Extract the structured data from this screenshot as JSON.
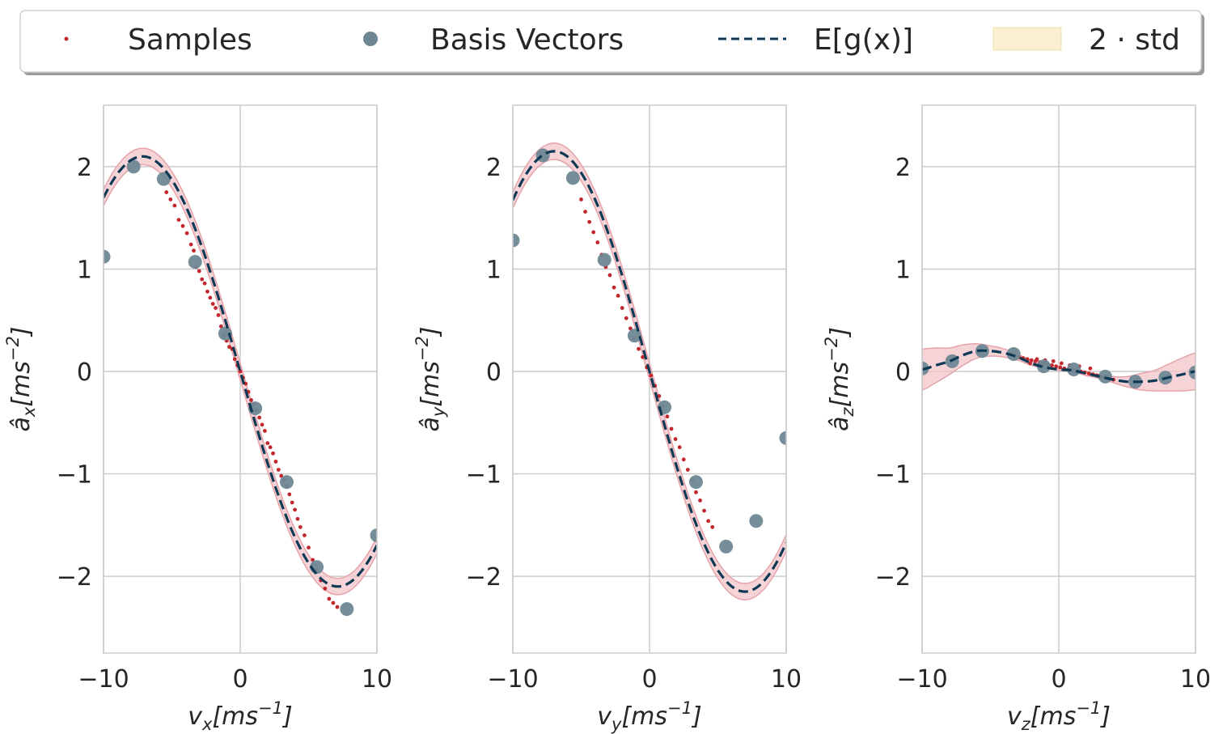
{
  "colors": {
    "samples": "#c1272d",
    "basis": "#6f8795",
    "mean": "#0d3954",
    "band_fill": "#f2c4c8",
    "band_edge": "#e6a3aa",
    "legend_band": "#faefd0",
    "grid": "#cccccc",
    "axes": "#cccccc",
    "text": "#262626"
  },
  "legend": {
    "items": [
      {
        "label": "Samples",
        "kind": "samples"
      },
      {
        "label": "Basis Vectors",
        "kind": "basis"
      },
      {
        "label": "E[g(x)]",
        "kind": "mean"
      },
      {
        "label": "2 · std",
        "kind": "band"
      }
    ],
    "placement": "top-center"
  },
  "chart_data": [
    {
      "type": "scatter",
      "xlabel": "v_x[ms^-1]",
      "ylabel": "â_x[ms^-2]",
      "xlabel_parts": {
        "base": "v",
        "sub": "x",
        "unit": "[ms",
        "sup": "−1",
        "close": "]"
      },
      "ylabel_parts": {
        "base": "â",
        "sub": "x",
        "unit": "[ms",
        "sup": "−2",
        "close": "]"
      },
      "xlim": [
        -10,
        10
      ],
      "ylim": [
        -2.75,
        2.6
      ],
      "xticks": [
        -10,
        0,
        10
      ],
      "xtick_labels": [
        "−10",
        "0",
        "10"
      ],
      "yticks": [
        -2,
        -1,
        0,
        1,
        2
      ],
      "ytick_labels": [
        "−2",
        "−1",
        "0",
        "1",
        "2"
      ],
      "grid": true,
      "mean_function": {
        "form": "A*sin(w*x)",
        "A": 2.1,
        "w": 0.22
      },
      "band_halfwidth": 0.08,
      "basis_vectors": {
        "x": [
          -10,
          -7.8,
          -5.6,
          -3.3,
          -1.1,
          1.1,
          3.4,
          5.6,
          7.8,
          10
        ],
        "y": [
          1.12,
          2.0,
          1.88,
          1.07,
          0.37,
          -0.36,
          -1.08,
          -1.91,
          -2.32,
          -1.6
        ]
      },
      "samples": {
        "x": [
          -5.4,
          -5.1,
          -4.8,
          -4.5,
          -4.2,
          -3.9,
          -3.6,
          -3.4,
          -3.2,
          -3.0,
          -2.8,
          -2.6,
          -2.4,
          -2.2,
          -2.0,
          -1.8,
          -1.6,
          -1.4,
          -1.2,
          -1.0,
          -0.8,
          -0.6,
          -0.4,
          -0.2,
          0.0,
          0.2,
          0.4,
          0.6,
          0.8,
          1.0,
          1.2,
          1.4,
          1.6,
          1.8,
          2.0,
          2.2,
          2.4,
          2.6,
          2.8,
          3.0,
          3.2,
          3.4,
          3.6,
          3.8,
          4.0,
          4.2,
          4.4,
          4.7,
          5.0,
          5.3,
          5.6,
          5.9,
          6.2,
          6.5,
          6.8,
          7.1
        ],
        "y": [
          1.75,
          1.68,
          1.62,
          1.48,
          1.42,
          1.35,
          1.24,
          1.18,
          1.02,
          0.98,
          0.9,
          0.86,
          0.78,
          0.72,
          0.66,
          0.62,
          0.55,
          0.44,
          0.35,
          0.3,
          0.24,
          0.22,
          0.12,
          0.06,
          0.0,
          -0.06,
          -0.12,
          -0.2,
          -0.28,
          -0.32,
          -0.38,
          -0.45,
          -0.52,
          -0.58,
          -0.7,
          -0.74,
          -0.8,
          -0.88,
          -0.96,
          -1.02,
          -1.06,
          -1.12,
          -1.2,
          -1.28,
          -1.35,
          -1.44,
          -1.52,
          -1.6,
          -1.72,
          -1.84,
          -1.94,
          -2.04,
          -2.12,
          -2.22,
          -2.26,
          -2.3
        ]
      }
    },
    {
      "type": "scatter",
      "xlabel": "v_y[ms^-1]",
      "ylabel": "â_y[ms^-2]",
      "xlabel_parts": {
        "base": "v",
        "sub": "y",
        "unit": "[ms",
        "sup": "−1",
        "close": "]"
      },
      "ylabel_parts": {
        "base": "â",
        "sub": "y",
        "unit": "[ms",
        "sup": "−2",
        "close": "]"
      },
      "xlim": [
        -10,
        10
      ],
      "ylim": [
        -2.75,
        2.6
      ],
      "xticks": [
        -10,
        0,
        10
      ],
      "xtick_labels": [
        "−10",
        "0",
        "10"
      ],
      "yticks": [
        -2,
        -1,
        0,
        1,
        2
      ],
      "ytick_labels": [
        "−2",
        "−1",
        "0",
        "1",
        "2"
      ],
      "grid": true,
      "mean_function": {
        "form": "A*sin(w*x)",
        "A": 2.15,
        "w": 0.225
      },
      "band_halfwidth": 0.08,
      "basis_vectors": {
        "x": [
          -10,
          -7.8,
          -5.6,
          -3.3,
          -1.1,
          1.1,
          3.4,
          5.6,
          7.8,
          10
        ],
        "y": [
          1.28,
          2.11,
          1.89,
          1.09,
          0.35,
          -0.35,
          -1.08,
          -1.71,
          -1.46,
          -0.65
        ]
      },
      "samples": {
        "x": [
          -5.0,
          -4.7,
          -4.4,
          -4.1,
          -3.8,
          -3.5,
          -3.2,
          -2.9,
          -2.6,
          -2.3,
          -2.0,
          -1.7,
          -1.4,
          -1.1,
          -0.8,
          -0.5,
          -0.2,
          0.1,
          0.4,
          0.7,
          1.0,
          1.3,
          1.6,
          1.9,
          2.2,
          2.5,
          2.8,
          3.1,
          3.4,
          3.7,
          4.0,
          4.3,
          4.6
        ],
        "y": [
          1.68,
          1.56,
          1.46,
          1.36,
          1.26,
          1.14,
          1.02,
          0.94,
          0.82,
          0.74,
          0.62,
          0.52,
          0.42,
          0.32,
          0.22,
          0.14,
          0.04,
          -0.04,
          -0.14,
          -0.24,
          -0.34,
          -0.44,
          -0.56,
          -0.66,
          -0.74,
          -0.86,
          -0.96,
          -1.06,
          -1.18,
          -1.26,
          -1.36,
          -1.46,
          -1.52
        ]
      }
    },
    {
      "type": "scatter",
      "xlabel": "v_z[ms^-1]",
      "ylabel": "â_z[ms^-2]",
      "xlabel_parts": {
        "base": "v",
        "sub": "z",
        "unit": "[ms",
        "sup": "−1",
        "close": "]"
      },
      "ylabel_parts": {
        "base": "â",
        "sub": "z",
        "unit": "[ms",
        "sup": "−2",
        "close": "]"
      },
      "xlim": [
        -10,
        10
      ],
      "ylim": [
        -2.75,
        2.6
      ],
      "xticks": [
        -10,
        0,
        10
      ],
      "xtick_labels": [
        "−10",
        "0",
        "10"
      ],
      "yticks": [
        -2,
        -1,
        0,
        1,
        2
      ],
      "ytick_labels": [
        "−2",
        "−1",
        "0",
        "1",
        "2"
      ],
      "grid": true,
      "mean_curve": {
        "x": [
          -10,
          -9,
          -8,
          -7,
          -6,
          -5,
          -4,
          -3,
          -2,
          -1,
          0,
          1,
          2,
          3,
          4,
          5,
          6,
          7,
          8,
          9,
          10
        ],
        "y": [
          0.02,
          0.06,
          0.1,
          0.16,
          0.2,
          0.2,
          0.18,
          0.14,
          0.08,
          0.04,
          0.02,
          0.01,
          -0.02,
          -0.05,
          -0.08,
          -0.1,
          -0.1,
          -0.09,
          -0.06,
          -0.03,
          0.0
        ]
      },
      "band_curve": {
        "x": [
          -10,
          -9,
          -8,
          -7,
          -6,
          -5,
          -4,
          -3,
          -2,
          -1,
          0,
          1,
          2,
          3,
          4,
          5,
          6,
          7,
          8,
          9,
          10
        ],
        "half": [
          0.2,
          0.17,
          0.13,
          0.1,
          0.07,
          0.05,
          0.04,
          0.03,
          0.02,
          0.01,
          0.01,
          0.01,
          0.02,
          0.02,
          0.03,
          0.05,
          0.08,
          0.1,
          0.13,
          0.16,
          0.18
        ]
      },
      "basis_vectors": {
        "x": [
          -10,
          -7.8,
          -5.6,
          -3.3,
          -1.1,
          1.1,
          3.4,
          5.6,
          7.8,
          10
        ],
        "y": [
          0.03,
          0.1,
          0.2,
          0.17,
          0.05,
          0.02,
          -0.05,
          -0.1,
          -0.06,
          -0.01
        ]
      },
      "samples": {
        "x": [
          -3.5,
          -3.2,
          -2.9,
          -2.6,
          -2.3,
          -2.0,
          -1.7,
          -1.4,
          -1.1,
          -0.8,
          -0.5,
          -0.2,
          0.1,
          0.4,
          0.7,
          1.0,
          1.3,
          1.6,
          1.9,
          2.2,
          2.5,
          2.8,
          3.1,
          3.4,
          3.7,
          4.0,
          -2.1,
          -1.6,
          -1.0,
          -0.4,
          0.2,
          0.8,
          1.5,
          2.3
        ],
        "y": [
          0.17,
          0.15,
          0.14,
          0.13,
          0.12,
          0.11,
          0.1,
          0.09,
          0.08,
          0.07,
          0.06,
          0.05,
          0.04,
          0.03,
          0.02,
          0.02,
          0.01,
          0.0,
          -0.01,
          -0.02,
          -0.03,
          -0.04,
          -0.05,
          -0.06,
          -0.07,
          -0.08,
          0.08,
          0.12,
          0.11,
          0.1,
          0.08,
          0.06,
          0.05,
          0.03
        ]
      }
    }
  ]
}
